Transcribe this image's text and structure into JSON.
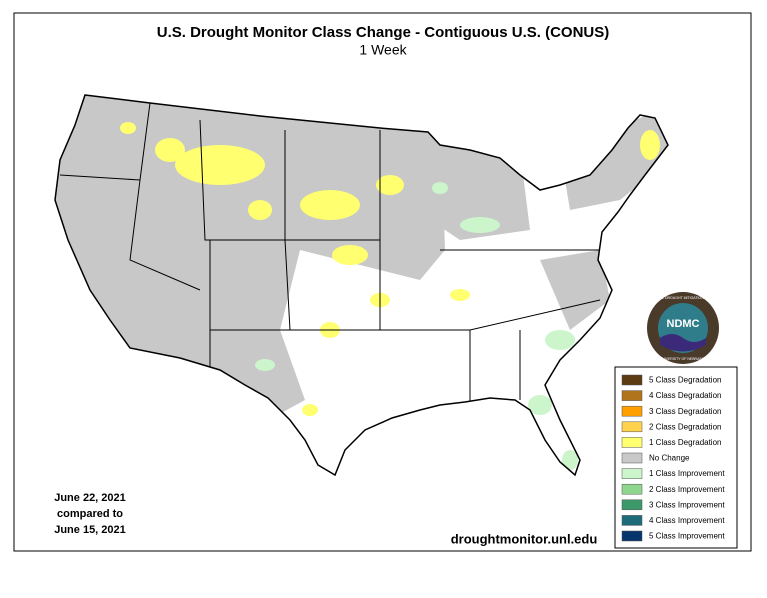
{
  "title": "U.S. Drought Monitor Class Change - Contiguous U.S. (CONUS)",
  "subtitle": "1 Week",
  "date_label": [
    "June 22, 2021",
    "compared to",
    "June 15, 2021"
  ],
  "source": "droughtmonitor.unl.edu",
  "logo": {
    "text": "NDMC",
    "ring_top": "NATIONAL DROUGHT MITIGATION CENTER",
    "ring_bottom": "UNIVERSITY OF NEBRASKA"
  },
  "legend": [
    {
      "label": "5 Class Degradation",
      "color": "#5c3a12"
    },
    {
      "label": "4 Class Degradation",
      "color": "#b0741c"
    },
    {
      "label": "3 Class Degradation",
      "color": "#ff9f00"
    },
    {
      "label": "2 Class Degradation",
      "color": "#ffd24d"
    },
    {
      "label": "1 Class Degradation",
      "color": "#ffff70"
    },
    {
      "label": "No Change",
      "color": "#c8c8c8"
    },
    {
      "label": "1 Class Improvement",
      "color": "#ccf5cc"
    },
    {
      "label": "2 Class Improvement",
      "color": "#8fd68f"
    },
    {
      "label": "3 Class Improvement",
      "color": "#3c9a6a"
    },
    {
      "label": "4 Class Improvement",
      "color": "#1d6b78"
    },
    {
      "label": "5 Class Improvement",
      "color": "#06366b"
    }
  ]
}
